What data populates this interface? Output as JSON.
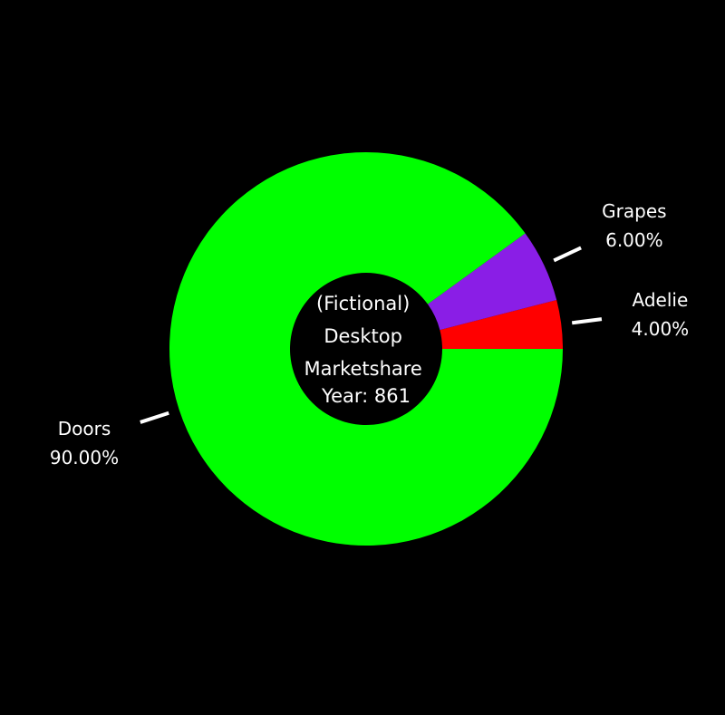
{
  "chart_data": {
    "type": "pie",
    "donut": true,
    "center_title_lines": [
      "(Fictional)",
      "Desktop",
      "Marketshare",
      "Year: 861"
    ],
    "slices": [
      {
        "label": "Doors",
        "value_label": "90.00%",
        "value": 90.0,
        "color": "#00ff00"
      },
      {
        "label": "Adelie",
        "value_label": "4.00%",
        "value": 4.0,
        "color": "#ff0000"
      },
      {
        "label": "Grapes",
        "value_label": "6.00%",
        "value": 6.0,
        "color": "#8a1ee6"
      }
    ],
    "start_angle": "east",
    "direction": "counterclockwise",
    "background": "#000000",
    "label_color": "#ffffff",
    "leader_color": "#ffffff"
  }
}
